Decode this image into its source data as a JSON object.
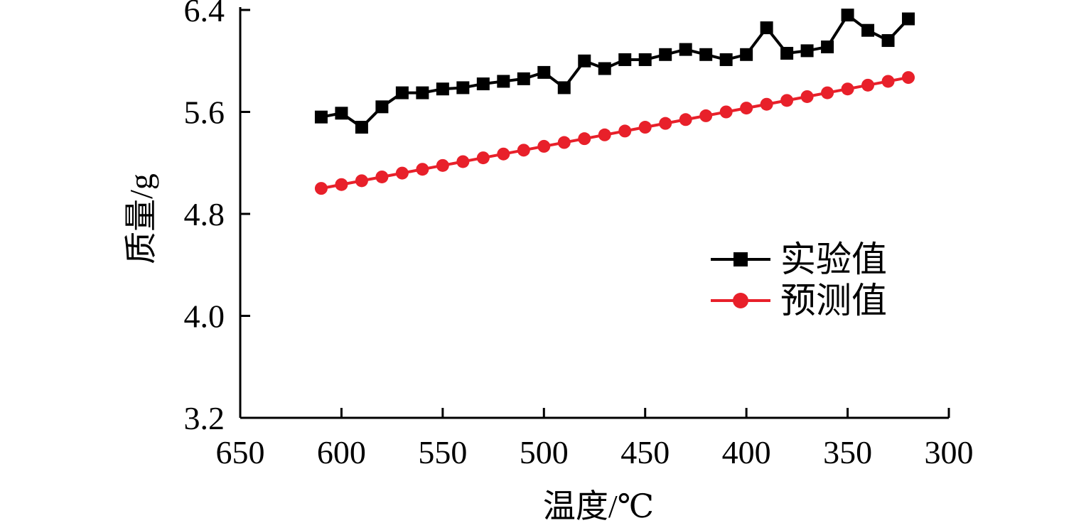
{
  "chart_data": {
    "type": "line",
    "xlabel": "温度/℃",
    "ylabel": "质量/g",
    "xlim": [
      650,
      300
    ],
    "ylim": [
      3.2,
      6.4
    ],
    "xticks": [
      "650",
      "600",
      "550",
      "500",
      "450",
      "400",
      "350",
      "300"
    ],
    "yticks": [
      "3.2",
      "4.0",
      "4.8",
      "5.6",
      "6.4"
    ],
    "x": [
      610,
      600,
      590,
      580,
      570,
      560,
      550,
      540,
      530,
      520,
      510,
      500,
      490,
      480,
      470,
      460,
      450,
      440,
      430,
      420,
      410,
      400,
      390,
      380,
      370,
      360,
      350,
      340,
      330,
      320
    ],
    "series": [
      {
        "name": "实验值",
        "color": "#000000",
        "marker": "square",
        "values": [
          5.56,
          5.59,
          5.48,
          5.64,
          5.75,
          5.75,
          5.78,
          5.79,
          5.82,
          5.84,
          5.86,
          5.91,
          5.79,
          6.0,
          5.94,
          6.01,
          6.01,
          6.05,
          6.09,
          6.05,
          6.01,
          6.05,
          6.26,
          6.06,
          6.08,
          6.11,
          6.36,
          6.24,
          6.16,
          6.33
        ]
      },
      {
        "name": "预测值",
        "color": "#e8202a",
        "marker": "circle",
        "values": [
          5.0,
          5.03,
          5.06,
          5.09,
          5.12,
          5.15,
          5.18,
          5.21,
          5.24,
          5.27,
          5.3,
          5.33,
          5.36,
          5.39,
          5.42,
          5.45,
          5.48,
          5.51,
          5.54,
          5.57,
          5.6,
          5.63,
          5.66,
          5.69,
          5.72,
          5.75,
          5.78,
          5.81,
          5.84,
          5.87
        ]
      }
    ],
    "legend_position": "center-right",
    "grid": false
  }
}
